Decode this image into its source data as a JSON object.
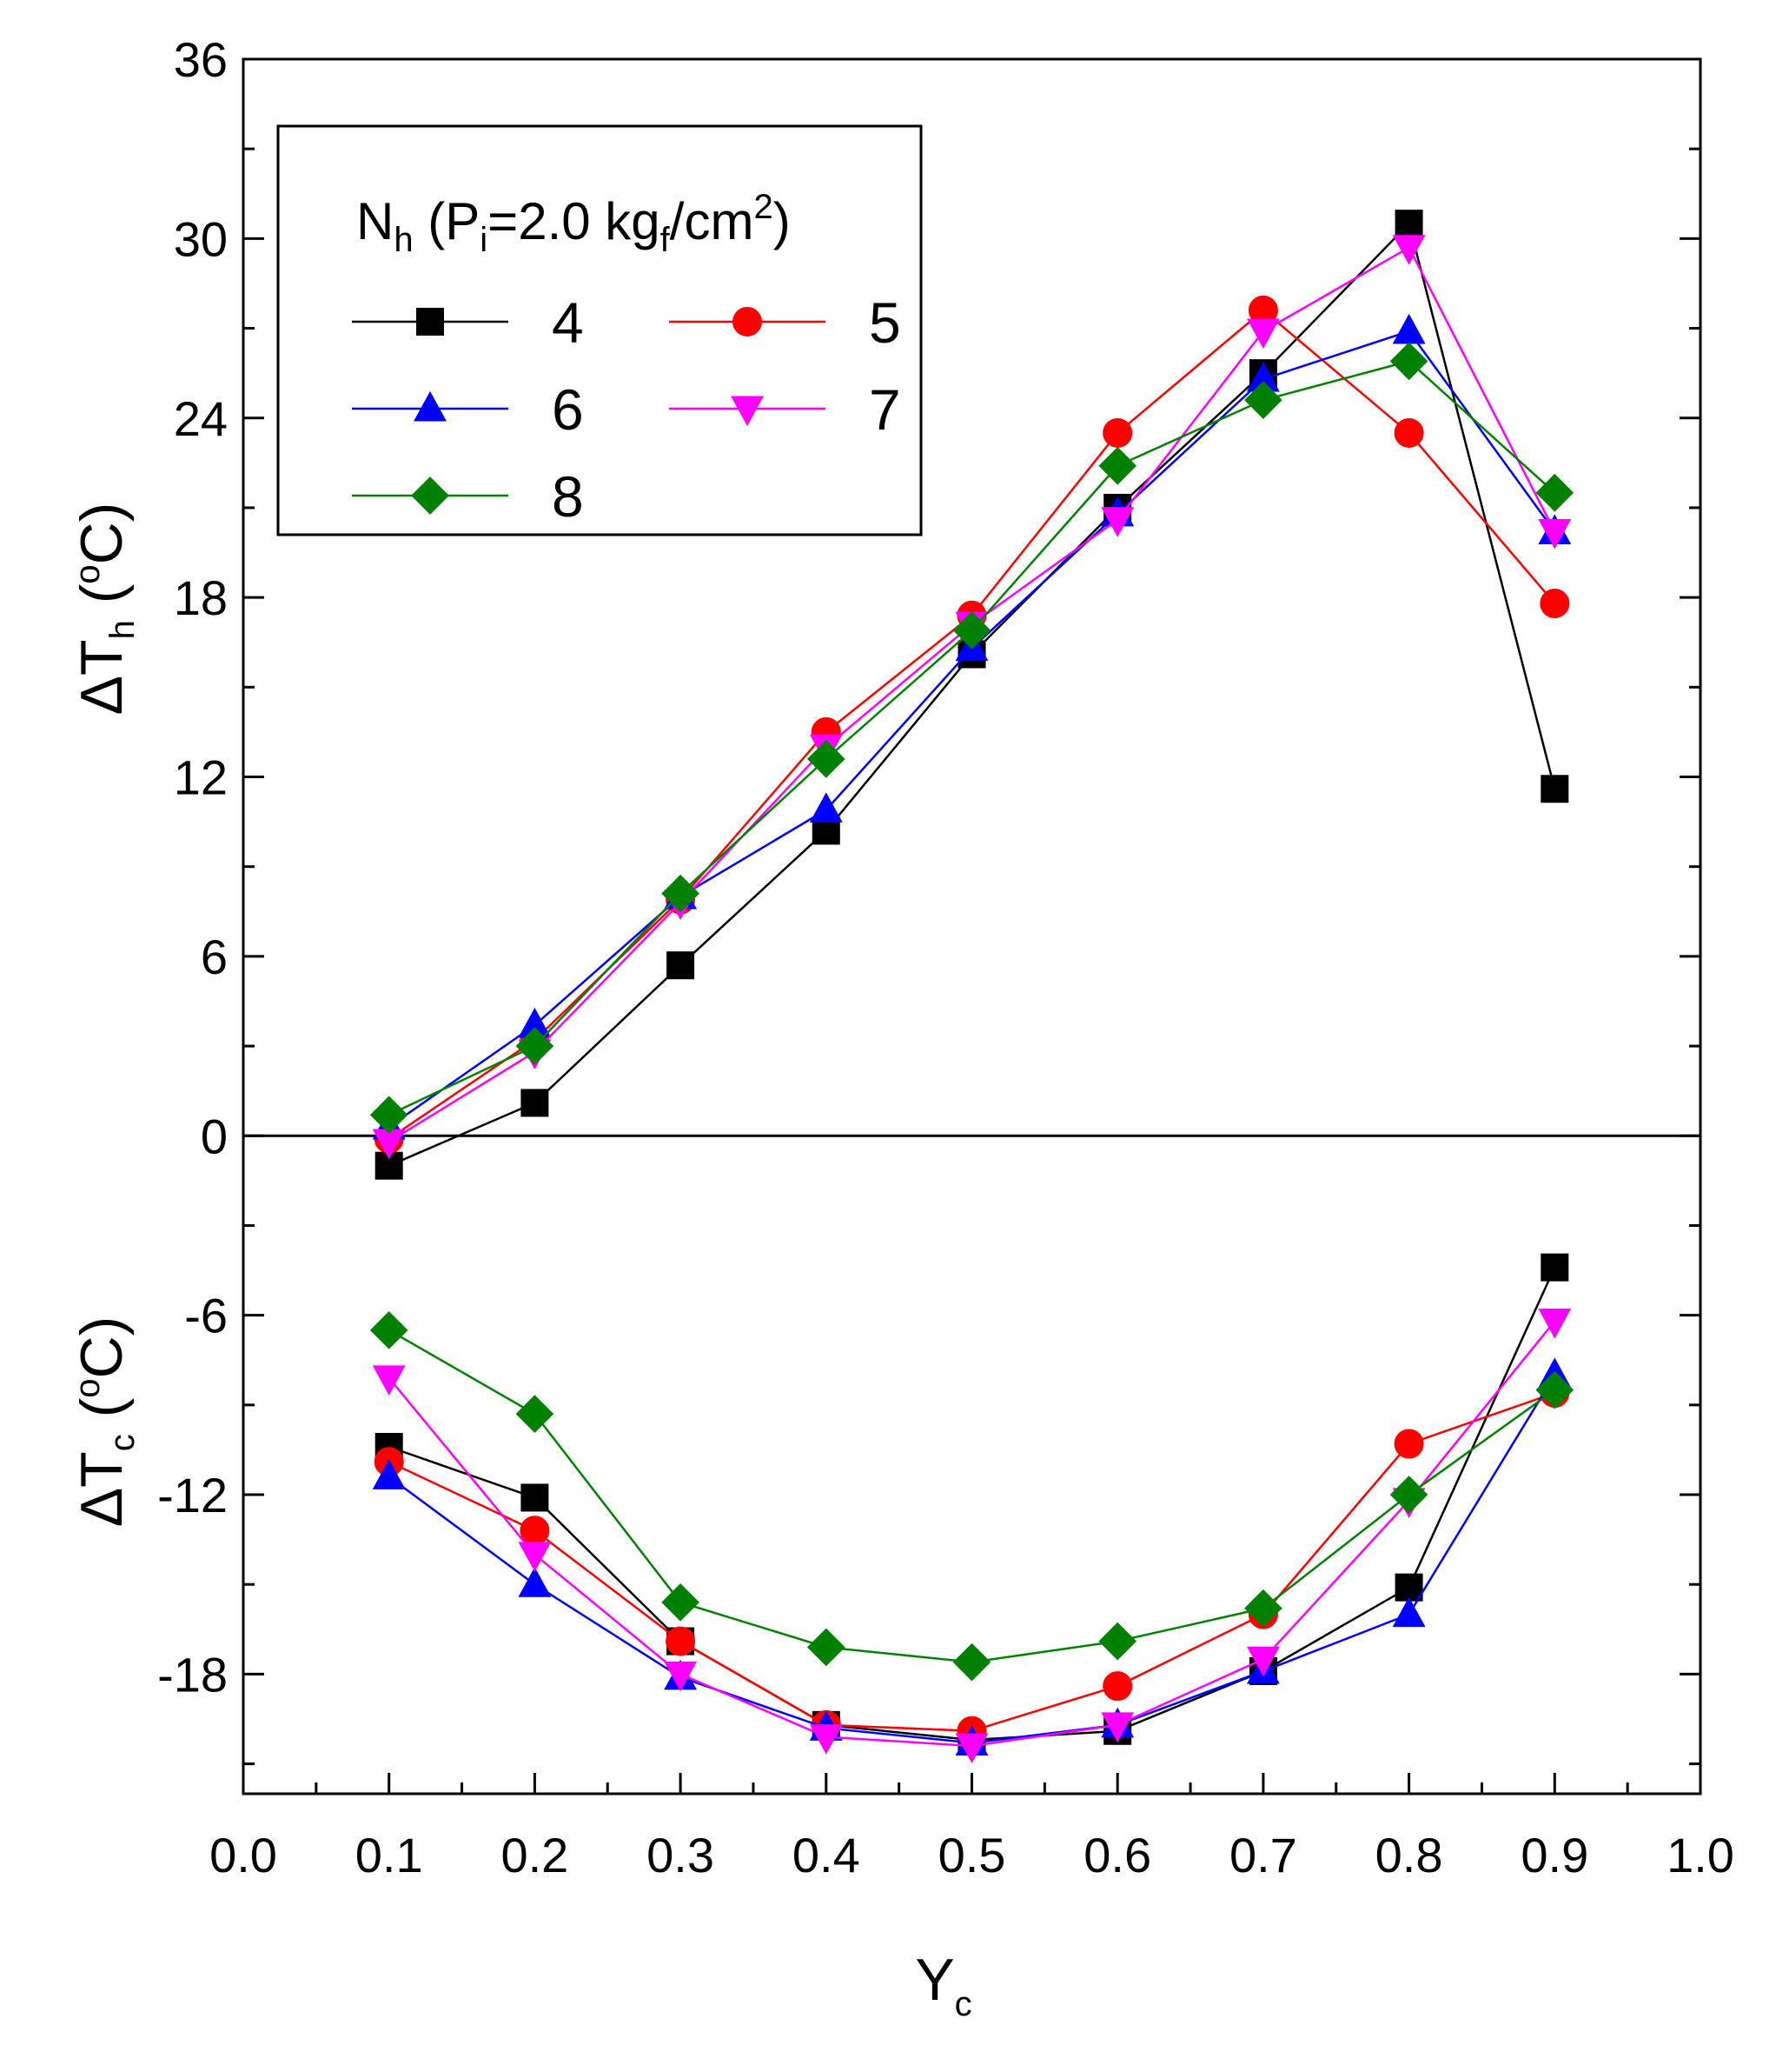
{
  "chart_data": {
    "type": "line",
    "xlabel": {
      "main": "Y",
      "sub": "c"
    },
    "ylabel_top": {
      "prefix": "ΔT",
      "sub": "h",
      "unit_open": " (",
      "deg": "o",
      "unit_close": "C)"
    },
    "ylabel_bottom": {
      "prefix": "ΔT",
      "sub": "c",
      "unit_open": " (",
      "deg": "o",
      "unit_close": "C)"
    },
    "xlim": [
      0.0,
      1.0
    ],
    "ylim": [
      -22,
      36
    ],
    "x_ticks": [
      "0.0",
      "0.1",
      "0.2",
      "0.3",
      "0.4",
      "0.5",
      "0.6",
      "0.7",
      "0.8",
      "0.9",
      "1.0"
    ],
    "y_ticks": [
      "36",
      "30",
      "24",
      "18",
      "12",
      "6",
      "0",
      "-6",
      "-12",
      "-18"
    ],
    "legend": {
      "title": {
        "n": "N",
        "n_sub": "h",
        "p_open": " (P",
        "p_sub": "i",
        "eq": "=2.0 kg",
        "kg_sub": "f",
        "unit": "/cm",
        "exp": "2",
        "close": ")"
      },
      "placement": "top-left"
    },
    "x": [
      0.1,
      0.2,
      0.3,
      0.4,
      0.5,
      0.6,
      0.7,
      0.8,
      0.9
    ],
    "series": [
      {
        "name": "4",
        "marker": "square",
        "color": "#000000",
        "hot": [
          -1.0,
          1.1,
          5.7,
          10.2,
          16.1,
          21.0,
          25.5,
          30.5,
          11.6
        ],
        "cold": [
          -10.4,
          -12.1,
          -16.9,
          -19.7,
          -20.2,
          -19.9,
          -17.9,
          -15.1,
          -4.4
        ]
      },
      {
        "name": "5",
        "marker": "circle",
        "color": "#ff0000",
        "hot": [
          -0.1,
          3.2,
          7.9,
          13.5,
          17.4,
          23.5,
          27.6,
          23.5,
          17.8
        ],
        "cold": [
          -10.9,
          -13.2,
          -16.9,
          -19.7,
          -19.9,
          -18.4,
          -16.0,
          -10.3,
          -8.6
        ]
      },
      {
        "name": "6",
        "marker": "triangle-up",
        "color": "#0000ff",
        "hot": [
          0.3,
          3.7,
          8.0,
          10.9,
          16.3,
          20.8,
          25.3,
          26.9,
          20.2
        ],
        "cold": [
          -11.4,
          -15.0,
          -18.1,
          -19.8,
          -20.3,
          -19.7,
          -17.9,
          -16.0,
          -8.0
        ]
      },
      {
        "name": "7",
        "marker": "triangle-down",
        "color": "#ff00ff",
        "hot": [
          -0.2,
          2.8,
          7.8,
          13.0,
          17.1,
          20.6,
          26.9,
          29.7,
          20.2
        ],
        "cold": [
          -8.1,
          -14.0,
          -18.0,
          -20.1,
          -20.4,
          -19.7,
          -17.5,
          -12.2,
          -6.2
        ]
      },
      {
        "name": "8",
        "marker": "diamond",
        "color": "#008000",
        "hot": [
          0.7,
          3.0,
          8.1,
          12.6,
          16.9,
          22.4,
          24.6,
          25.9,
          21.5
        ],
        "cold": [
          -6.5,
          -9.3,
          -15.6,
          -17.1,
          -17.6,
          -16.9,
          -15.8,
          -12.0,
          -8.5
        ]
      }
    ]
  }
}
